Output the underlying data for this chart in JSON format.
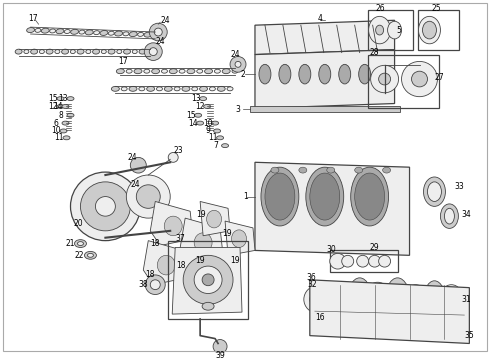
{
  "background_color": "#ffffff",
  "fig_width": 4.9,
  "fig_height": 3.6,
  "dpi": 100,
  "label_fontsize": 5.5,
  "label_color": "#000000",
  "line_color": "#444444",
  "part_fill": "#cccccc",
  "part_fill_light": "#eeeeee",
  "part_fill_dark": "#aaaaaa"
}
